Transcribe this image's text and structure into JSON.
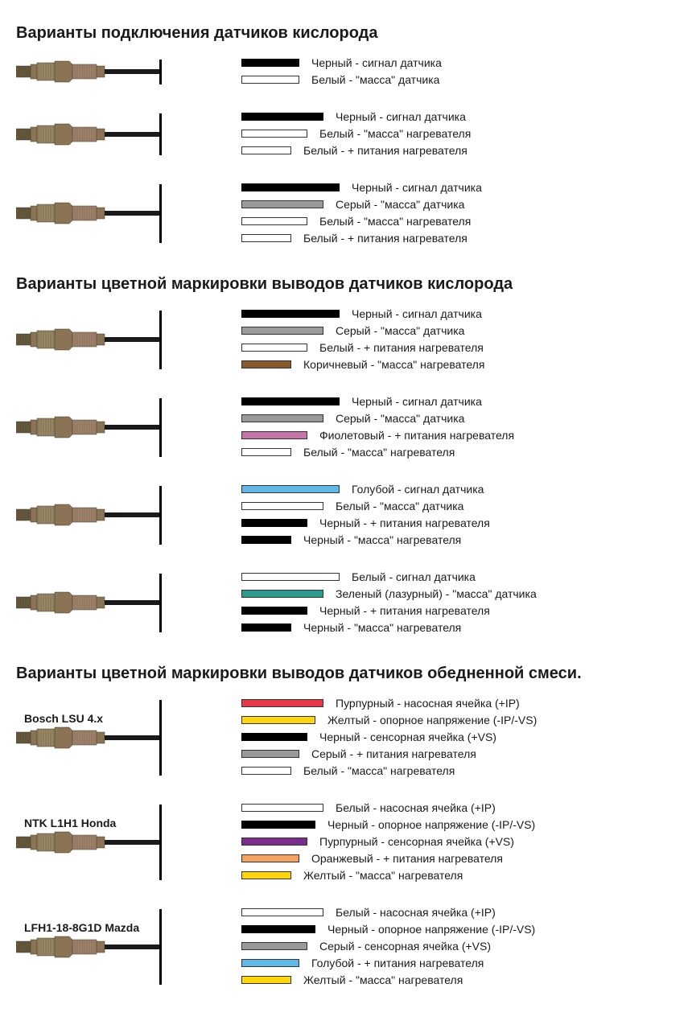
{
  "colors": {
    "black": "#000000",
    "white": "#ffffff",
    "gray": "#9a9a9a",
    "brown": "#8b5a2b",
    "violet": "#c774a8",
    "blue": "#5eb8e8",
    "teal": "#2a9d8f",
    "red": "#e63946",
    "yellow": "#ffd60a",
    "orange": "#f4a261",
    "purple": "#7b2d8e"
  },
  "sensor_colors": {
    "tip": "#6b5a3a",
    "body1": "#8b7355",
    "body2": "#a0826d",
    "hex": "#8b7355",
    "thread": "#9a8a6a",
    "cable": "#1a1a1a"
  },
  "sections": [
    {
      "title": "Варианты подключения датчиков кислорода",
      "sensors": [
        {
          "label": "",
          "wires": [
            {
              "color": "black",
              "width": 70,
              "text": "Черный - сигнал датчика"
            },
            {
              "color": "white",
              "width": 70,
              "text": "Белый - \"масса\" датчика"
            }
          ]
        },
        {
          "label": "",
          "wires": [
            {
              "color": "black",
              "width": 100,
              "text": "Черный - сигнал датчика"
            },
            {
              "color": "white",
              "width": 80,
              "text": "Белый - \"масса\" нагревателя"
            },
            {
              "color": "white",
              "width": 60,
              "text": "Белый - + питания нагревателя"
            }
          ]
        },
        {
          "label": "",
          "wires": [
            {
              "color": "black",
              "width": 120,
              "text": "Черный - сигнал датчика"
            },
            {
              "color": "gray",
              "width": 100,
              "text": "Серый - \"масса\" датчика"
            },
            {
              "color": "white",
              "width": 80,
              "text": "Белый - \"масса\" нагревателя"
            },
            {
              "color": "white",
              "width": 60,
              "text": "Белый - + питания нагревателя"
            }
          ]
        }
      ]
    },
    {
      "title": "Варианты цветной маркировки выводов датчиков кислорода",
      "sensors": [
        {
          "label": "",
          "wires": [
            {
              "color": "black",
              "width": 120,
              "text": "Черный - сигнал датчика"
            },
            {
              "color": "gray",
              "width": 100,
              "text": "Серый - \"масса\" датчика"
            },
            {
              "color": "white",
              "width": 80,
              "text": "Белый - + питания нагревателя"
            },
            {
              "color": "brown",
              "width": 60,
              "text": "Коричневый - \"масса\" нагревателя"
            }
          ]
        },
        {
          "label": "",
          "wires": [
            {
              "color": "black",
              "width": 120,
              "text": "Черный - сигнал датчика"
            },
            {
              "color": "gray",
              "width": 100,
              "text": "Серый - \"масса\" датчика"
            },
            {
              "color": "violet",
              "width": 80,
              "text": "Фиолетовый - + питания нагревателя"
            },
            {
              "color": "white",
              "width": 60,
              "text": "Белый - \"масса\" нагревателя"
            }
          ]
        },
        {
          "label": "",
          "wires": [
            {
              "color": "blue",
              "width": 120,
              "text": "Голубой - сигнал датчика"
            },
            {
              "color": "white",
              "width": 100,
              "text": "Белый - \"масса\" датчика"
            },
            {
              "color": "black",
              "width": 80,
              "text": "Черный - + питания нагревателя"
            },
            {
              "color": "black",
              "width": 60,
              "text": "Черный - \"масса\" нагревателя"
            }
          ]
        },
        {
          "label": "",
          "wires": [
            {
              "color": "white",
              "width": 120,
              "text": "Белый - сигнал датчика"
            },
            {
              "color": "teal",
              "width": 100,
              "text": "Зеленый (лазурный) - \"масса\" датчика"
            },
            {
              "color": "black",
              "width": 80,
              "text": "Черный - + питания нагревателя"
            },
            {
              "color": "black",
              "width": 60,
              "text": "Черный - \"масса\" нагревателя"
            }
          ]
        }
      ]
    },
    {
      "title": "Варианты цветной маркировки выводов датчиков обедненной смеси.",
      "sensors": [
        {
          "label": "Bosch LSU 4.x",
          "wires": [
            {
              "color": "red",
              "width": 100,
              "text": "Пурпурный - насосная ячейка (+IP)"
            },
            {
              "color": "yellow",
              "width": 90,
              "text": "Желтый - опорное напряжение (-IP/-VS)"
            },
            {
              "color": "black",
              "width": 80,
              "text": "Черный - сенсорная ячейка (+VS)"
            },
            {
              "color": "gray",
              "width": 70,
              "text": "Серый - + питания нагревателя"
            },
            {
              "color": "white",
              "width": 60,
              "text": "Белый - \"масса\" нагревателя"
            }
          ]
        },
        {
          "label": "NTK L1H1 Honda",
          "wires": [
            {
              "color": "white",
              "width": 100,
              "text": "Белый - насосная ячейка (+IP)"
            },
            {
              "color": "black",
              "width": 90,
              "text": "Черный - опорное напряжение (-IP/-VS)"
            },
            {
              "color": "purple",
              "width": 80,
              "text": "Пурпурный - сенсорная ячейка (+VS)"
            },
            {
              "color": "orange",
              "width": 70,
              "text": "Оранжевый - + питания нагревателя"
            },
            {
              "color": "yellow",
              "width": 60,
              "text": "Желтый - \"масса\" нагревателя"
            }
          ]
        },
        {
          "label": "LFH1-18-8G1D Mazda",
          "wires": [
            {
              "color": "white",
              "width": 100,
              "text": "Белый - насосная ячейка (+IP)"
            },
            {
              "color": "black",
              "width": 90,
              "text": "Черный - опорное напряжение (-IP/-VS)"
            },
            {
              "color": "gray",
              "width": 80,
              "text": "Серый - сенсорная ячейка (+VS)"
            },
            {
              "color": "blue",
              "width": 70,
              "text": "Голубой - + питания нагревателя"
            },
            {
              "color": "yellow",
              "width": 60,
              "text": "Желтый - \"масса\" нагревателя"
            }
          ]
        }
      ]
    }
  ]
}
